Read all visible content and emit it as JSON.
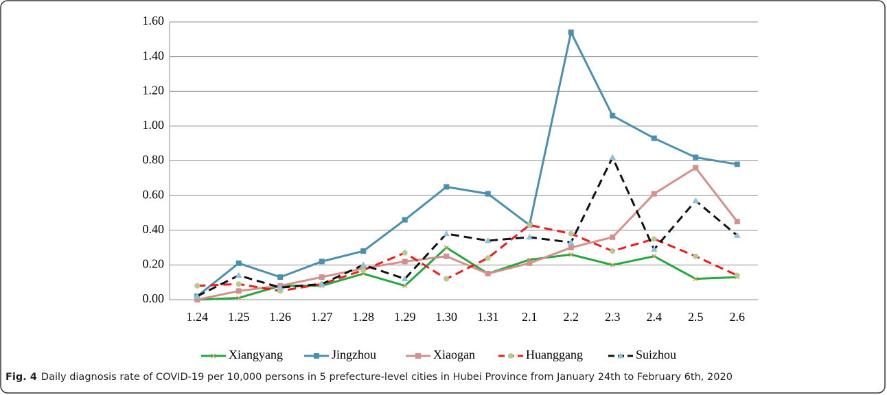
{
  "chart_data": {
    "type": "line",
    "categories": [
      "1.24",
      "1.25",
      "1.26",
      "1.27",
      "1.28",
      "1.29",
      "1.30",
      "1.31",
      "2.1",
      "2.2",
      "2.3",
      "2.4",
      "2.5",
      "2.6"
    ],
    "series": [
      {
        "name": "Xiangyang",
        "color": "#22a83c",
        "marker": "x",
        "dash": false,
        "values": [
          0.0,
          0.01,
          0.08,
          0.08,
          0.15,
          0.08,
          0.3,
          0.15,
          0.23,
          0.26,
          0.2,
          0.25,
          0.12,
          0.13
        ]
      },
      {
        "name": "Jingzhou",
        "color": "#4a8fae",
        "marker": "square",
        "dash": false,
        "values": [
          0.02,
          0.21,
          0.13,
          0.22,
          0.28,
          0.46,
          0.65,
          0.61,
          0.43,
          1.54,
          1.06,
          0.93,
          0.82,
          0.78
        ]
      },
      {
        "name": "Xiaogan",
        "color": "#d4908c",
        "marker": "square",
        "dash": false,
        "values": [
          0.0,
          0.05,
          0.08,
          0.13,
          0.18,
          0.22,
          0.25,
          0.15,
          0.21,
          0.3,
          0.36,
          0.61,
          0.76,
          0.45
        ]
      },
      {
        "name": "Huanggang",
        "color": "#ee1c1c",
        "marker": "circle",
        "dash": true,
        "values": [
          0.08,
          0.09,
          0.05,
          0.09,
          0.17,
          0.27,
          0.12,
          0.24,
          0.43,
          0.38,
          0.28,
          0.35,
          0.25,
          0.14
        ]
      },
      {
        "name": "Suizhou",
        "color": "#111111",
        "marker": "triangle",
        "dash": true,
        "values": [
          0.02,
          0.14,
          0.07,
          0.09,
          0.2,
          0.12,
          0.38,
          0.34,
          0.36,
          0.33,
          0.82,
          0.29,
          0.57,
          0.37
        ]
      }
    ],
    "ylim": [
      0,
      1.6
    ],
    "yticks": [
      {
        "value": 0,
        "label": "0.00"
      },
      {
        "value": 0.2,
        "label": "0.20"
      },
      {
        "value": 0.4,
        "label": "0.40"
      },
      {
        "value": 0.6,
        "label": "0.60"
      },
      {
        "value": 0.8,
        "label": "0.80"
      },
      {
        "value": 1.0,
        "label": "1.00"
      },
      {
        "value": 1.2,
        "label": "1.20"
      },
      {
        "value": 1.4,
        "label": "1.40"
      },
      {
        "value": 1.6,
        "label": "1.60"
      }
    ],
    "grid": true,
    "legend": "bottom"
  },
  "caption": {
    "label": "Fig. 4",
    "text": "Daily diagnosis rate of COVID-19 per 10,000 persons in 5 prefecture-level cities in Hubei Province from January 24th to February 6th, 2020"
  }
}
